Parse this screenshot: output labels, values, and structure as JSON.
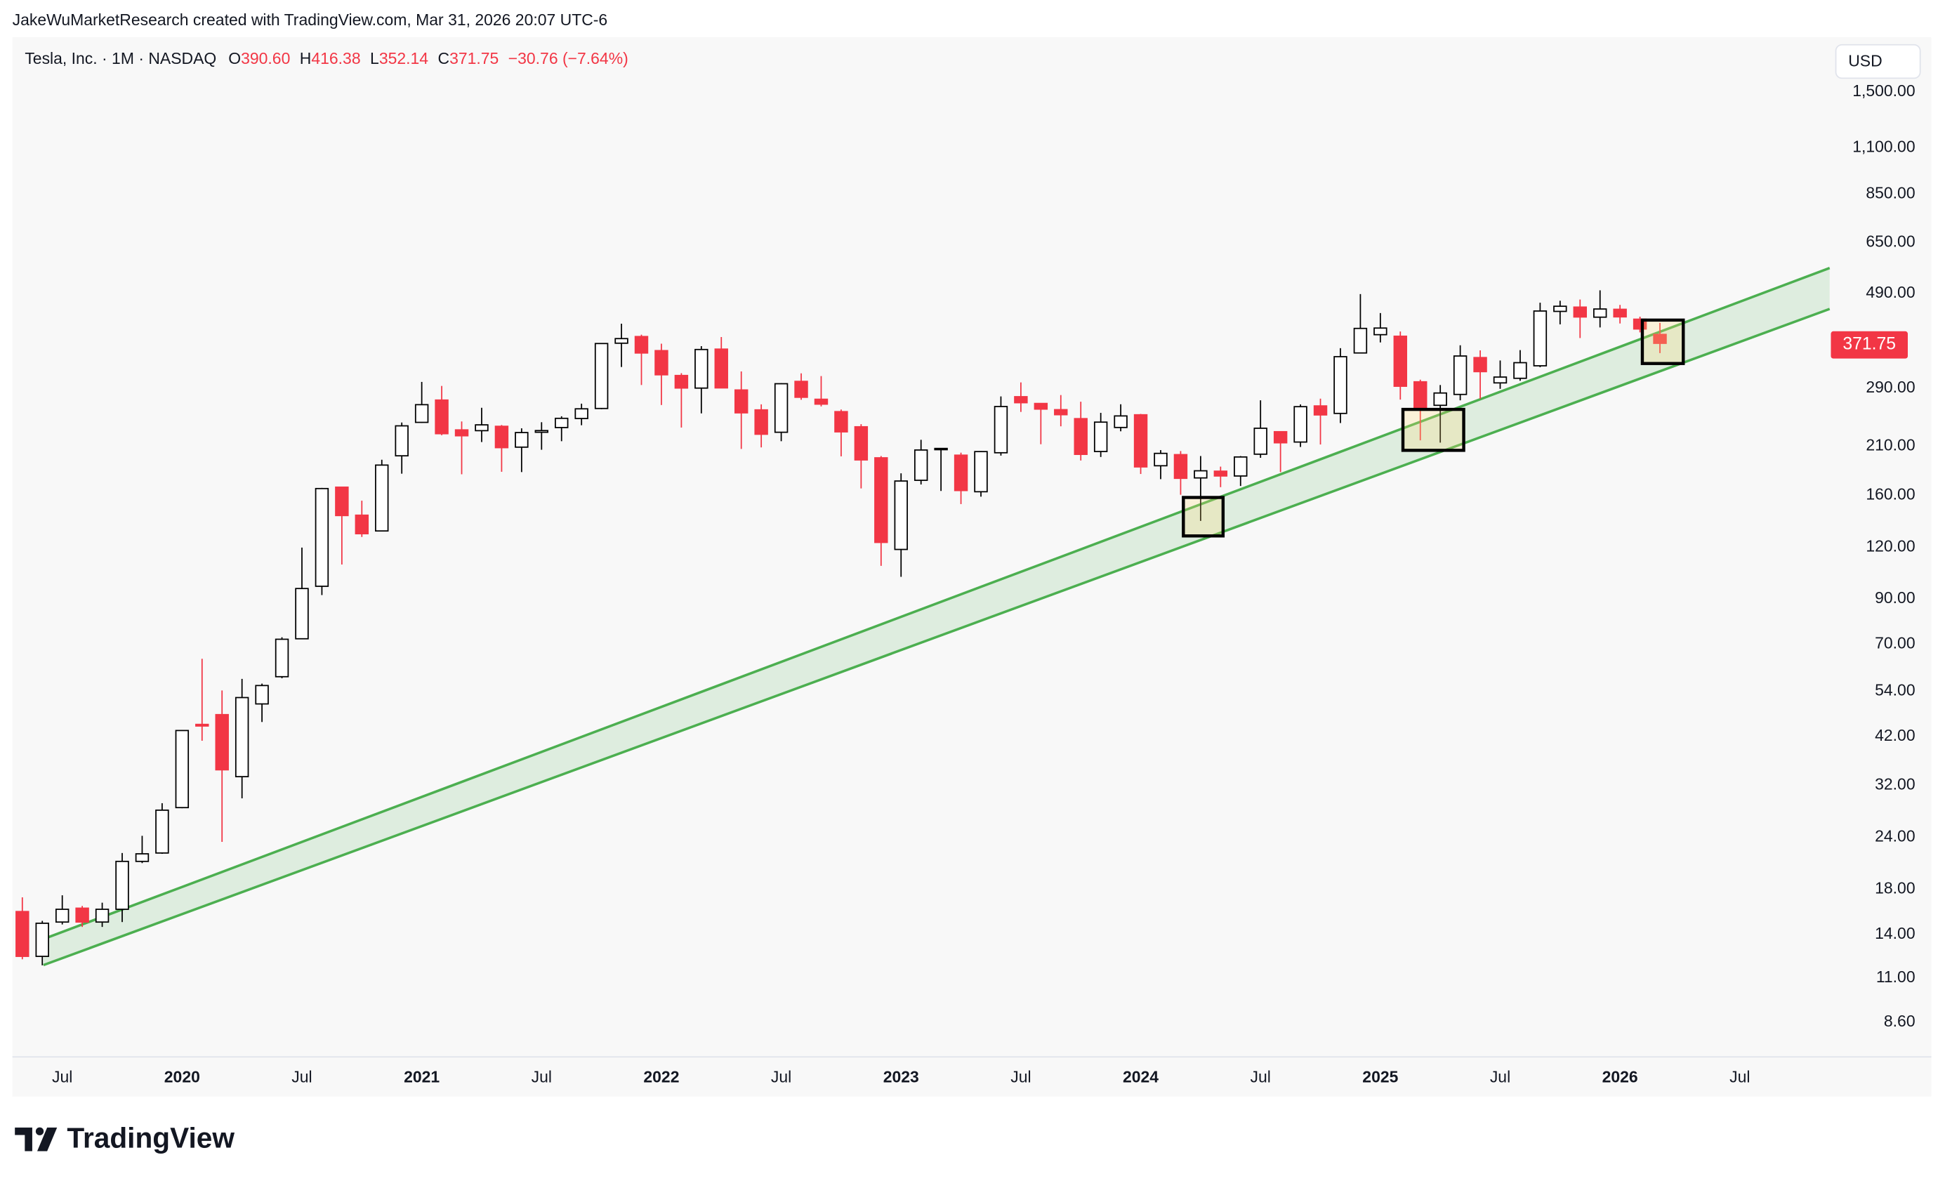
{
  "header": {
    "credit": "JakeWuMarketResearch created with TradingView.com, Mar 31, 2026 20:07 UTC-6"
  },
  "footer": {
    "brand": "TradingView"
  },
  "chart_data": {
    "type": "candlestick",
    "title": "Tesla, Inc. · 1M · NASDAQ",
    "legend": {
      "open_key": "O",
      "open": "390.60",
      "high_key": "H",
      "high": "416.38",
      "low_key": "L",
      "low": "352.14",
      "close_key": "C",
      "close": "371.75",
      "change": "−30.76 (−7.64%)"
    },
    "currency": "USD",
    "last_price_label": "371.75",
    "up_color": "#ffffff",
    "up_border": "#000000",
    "down_color": "#f23645",
    "log": true,
    "grid": false,
    "categories": [
      null,
      null,
      "Jul",
      null,
      null,
      null,
      null,
      null,
      "2020",
      null,
      null,
      null,
      null,
      null,
      "Jul",
      null,
      null,
      null,
      null,
      null,
      "2021",
      null,
      null,
      null,
      null,
      null,
      "Jul",
      null,
      null,
      null,
      null,
      null,
      "2022",
      null,
      null,
      null,
      null,
      null,
      "Jul",
      null,
      null,
      null,
      null,
      null,
      "2023",
      null,
      null,
      null,
      null,
      null,
      "Jul",
      null,
      null,
      null,
      null,
      null,
      "2024",
      null,
      null,
      null,
      null,
      null,
      "Jul",
      null,
      null,
      null,
      null,
      null,
      "2025",
      null,
      null,
      null,
      null,
      null,
      "Jul",
      null,
      null,
      null,
      null,
      null,
      "2026",
      null,
      null,
      null,
      null,
      null,
      "Jul"
    ],
    "open": [
      15.9,
      12.4,
      15.0,
      16.2,
      15.0,
      16.1,
      21.0,
      22.0,
      28.3,
      44.9,
      47.4,
      33.6,
      50.3,
      58.5,
      72.2,
      96.6,
      167.4,
      143.3,
      131.3,
      199.2,
      239.8,
      271.4,
      230.0,
      229.0,
      234.6,
      209.0,
      227.0,
      233.0,
      245.0,
      259.0,
      372.0,
      386.0,
      357.0,
      311.0,
      290.0,
      360.0,
      287.0,
      257.0,
      227.0,
      301.0,
      272.6,
      254.5,
      234.0,
      197.0,
      118.5,
      173.9,
      206.2,
      199.9,
      163.2,
      202.6,
      276.5,
      266.3,
      257.3,
      244.8,
      204.0,
      233.1,
      250.1,
      188.5,
      200.5,
      176.2,
      182.9,
      178.1,
      201.0,
      227.7,
      215.0,
      262.7,
      252.0,
      352.4,
      390.0,
      386.7,
      300.3,
      263.6,
      280.0,
      343.5,
      298.5,
      306.2,
      328.2,
      443.8,
      454.5,
      429.8,
      449.0,
      425.0,
      390.6,
      null,
      null,
      null,
      null
    ],
    "high": [
      17.2,
      15.1,
      17.4,
      16.4,
      16.7,
      22.0,
      24.2,
      29.0,
      43.5,
      64.6,
      54.2,
      57.8,
      56.3,
      72.8,
      119.7,
      166.7,
      167.5,
      155.3,
      194.9,
      239.6,
      300.1,
      293.5,
      241.0,
      260.0,
      236.3,
      232.0,
      240.0,
      248.0,
      266.0,
      372.0,
      414.5,
      390.0,
      371.0,
      315.0,
      366.0,
      385.0,
      318.0,
      265.0,
      298.0,
      314.7,
      310.0,
      257.5,
      237.4,
      198.9,
      180.7,
      217.7,
      207.8,
      202.7,
      204.5,
      276.9,
      299.3,
      266.5,
      279.0,
      268.9,
      252.8,
      265.1,
      251.3,
      205.6,
      204.5,
      198.9,
      187.6,
      198.9,
      271.0,
      228.2,
      264.9,
      273.5,
      361.9,
      488.5,
      439.7,
      397.0,
      303.9,
      294.9,
      367.7,
      357.5,
      338.0,
      358.0,
      465.7,
      470.8,
      474.0,
      498.8,
      460.0,
      431.0,
      416.38,
      null,
      null,
      null,
      null
    ],
    "low": [
      12.2,
      11.8,
      14.8,
      14.6,
      14.6,
      15.0,
      20.8,
      21.9,
      28.2,
      41.0,
      23.4,
      29.8,
      45.5,
      58.0,
      72.0,
      92.0,
      109.0,
      127.0,
      131.3,
      180.4,
      239.1,
      223.3,
      179.8,
      215.0,
      182.3,
      182.0,
      206.0,
      216.0,
      236.0,
      258.0,
      326.0,
      295.0,
      264.0,
      233.0,
      252.0,
      290.0,
      206.9,
      208.7,
      216.0,
      271.8,
      262.0,
      198.6,
      166.2,
      108.2,
      101.8,
      169.9,
      163.9,
      152.4,
      158.8,
      199.4,
      254.1,
      212.4,
      234.6,
      194.1,
      197.9,
      228.2,
      180.1,
      175.0,
      160.5,
      138.8,
      167.4,
      168.5,
      197.0,
      182.0,
      209.2,
      212.1,
      238.9,
      352.4,
      373.6,
      272.0,
      217.0,
      214.3,
      271.0,
      273.2,
      288.8,
      302.0,
      325.6,
      413.0,
      382.8,
      406.0,
      415.0,
      395.0,
      352.14,
      null,
      null,
      null,
      null
    ],
    "close": [
      12.4,
      14.9,
      16.1,
      15.0,
      16.1,
      21.0,
      21.9,
      27.9,
      43.4,
      44.5,
      34.9,
      52.1,
      55.7,
      72.0,
      95.4,
      166.1,
      143.0,
      129.3,
      189.2,
      235.2,
      264.5,
      225.2,
      222.6,
      236.5,
      208.4,
      226.6,
      229.1,
      245.2,
      258.5,
      371.3,
      381.6,
      352.3,
      312.2,
      290.1,
      359.2,
      290.3,
      252.8,
      224.5,
      297.1,
      275.6,
      265.3,
      227.5,
      194.7,
      123.2,
      173.2,
      205.7,
      207.5,
      164.3,
      203.9,
      261.8,
      267.4,
      258.1,
      250.2,
      200.8,
      240.1,
      248.5,
      187.3,
      201.9,
      175.8,
      183.3,
      178.1,
      197.9,
      232.1,
      214.1,
      261.6,
      249.9,
      345.2,
      403.8,
      404.6,
      293.0,
      259.2,
      282.2,
      346.5,
      317.7,
      308.3,
      333.9,
      444.7,
      456.6,
      430.2,
      449.7,
      430.5,
      402.51,
      371.75,
      null,
      null,
      null,
      null
    ],
    "ylim": [
      7.1,
      2030
    ],
    "yticks": [
      {
        "value": 1500,
        "label": "1,500.00"
      },
      {
        "value": 1100,
        "label": "1,100.00"
      },
      {
        "value": 850,
        "label": "850.00"
      },
      {
        "value": 650,
        "label": "650.00"
      },
      {
        "value": 490,
        "label": "490.00"
      },
      {
        "value": 290,
        "label": "290.00"
      },
      {
        "value": 210,
        "label": "210.00"
      },
      {
        "value": 160,
        "label": "160.00"
      },
      {
        "value": 120,
        "label": "120.00"
      },
      {
        "value": 90,
        "label": "90.00"
      },
      {
        "value": 70,
        "label": "70.00"
      },
      {
        "value": 54,
        "label": "54.00"
      },
      {
        "value": 42,
        "label": "42.00"
      },
      {
        "value": 32,
        "label": "32.00"
      },
      {
        "value": 24,
        "label": "24.00"
      },
      {
        "value": 18,
        "label": "18.00"
      },
      {
        "value": 14,
        "label": "14.00"
      },
      {
        "value": 11,
        "label": "11.00"
      },
      {
        "value": 8.6,
        "label": "8.60"
      }
    ]
  }
}
